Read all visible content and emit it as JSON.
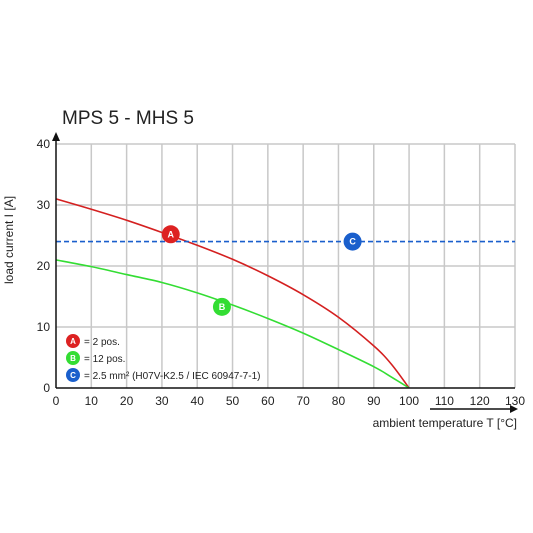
{
  "chart_data": {
    "type": "line",
    "title": "MPS 5 - MHS 5",
    "xlabel": "ambient temperature T [°C]",
    "ylabel": "load current I [A]",
    "xlim": [
      0,
      130
    ],
    "ylim": [
      0,
      40
    ],
    "xticks": [
      0,
      10,
      20,
      30,
      40,
      50,
      60,
      70,
      80,
      90,
      100,
      110,
      120,
      130
    ],
    "yticks": [
      0,
      10,
      20,
      30,
      40
    ],
    "grid": true,
    "legend_position": "bottom-left",
    "series": [
      {
        "marker": "A",
        "color": "#d42020",
        "style": "solid",
        "x": [
          0,
          10,
          20,
          30,
          40,
          50,
          60,
          70,
          80,
          90,
          95,
          100
        ],
        "y": [
          31,
          29.3,
          27.5,
          25.5,
          23.4,
          21.1,
          18.4,
          15.3,
          11.6,
          6.9,
          3.9,
          0
        ]
      },
      {
        "marker": "B",
        "color": "#33dd33",
        "style": "solid",
        "x": [
          0,
          10,
          20,
          30,
          40,
          50,
          60,
          70,
          80,
          90,
          95,
          100
        ],
        "y": [
          21,
          19.9,
          18.6,
          17.3,
          15.6,
          13.6,
          11.4,
          9,
          6.3,
          3.5,
          1.8,
          0
        ]
      },
      {
        "marker": "C",
        "color": "#1a5fcc",
        "style": "dashed",
        "x": [
          0,
          130
        ],
        "y": [
          24,
          24
        ]
      }
    ],
    "markers": [
      {
        "label": "A",
        "x": 32.5,
        "y": 25.2,
        "color": "#dd2222"
      },
      {
        "label": "B",
        "x": 47,
        "y": 13.3,
        "color": "#33dd33"
      },
      {
        "label": "C",
        "x": 84,
        "y": 24,
        "color": "#1a5fcc"
      }
    ],
    "legend": [
      {
        "label": "A",
        "text": "= 2 pos.",
        "color": "#dd2222"
      },
      {
        "label": "B",
        "text": "= 12 pos.",
        "color": "#33dd33"
      },
      {
        "label": "C",
        "text": "= 2.5 mm² (H07V-K2.5 / IEC 60947-7-1)",
        "color": "#1a5fcc"
      }
    ],
    "colors": {
      "grid": "#c8c8c8",
      "axis": "#111111",
      "dash": "#1a5fcc"
    }
  }
}
